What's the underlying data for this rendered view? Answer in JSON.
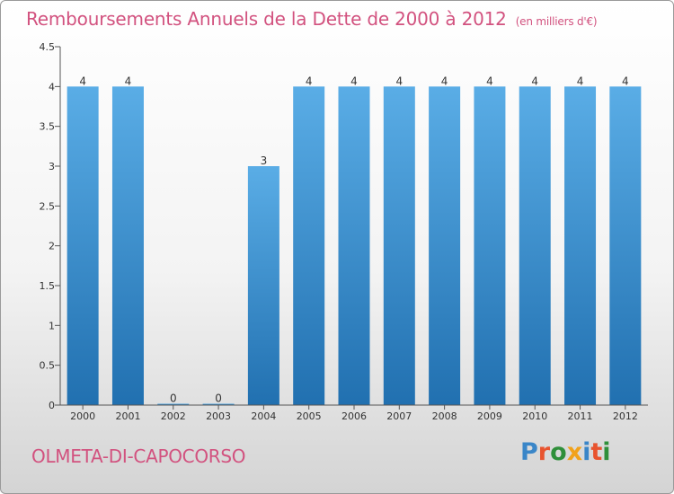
{
  "header": {
    "title": "Remboursements Annuels de la Dette de 2000 à 2012",
    "unit": "(en milliers d'€)"
  },
  "footer": {
    "commune": "OLMETA-DI-CAPOCORSO",
    "logo": "Proxiti"
  },
  "colors": {
    "title": "#d2527f",
    "bar_top": "#5aade6",
    "bar_bottom": "#2170b0"
  },
  "chart_data": {
    "type": "bar",
    "title": "Remboursements Annuels de la Dette de 2000 à 2012",
    "subtitle": "(en milliers d'€)",
    "categories": [
      "2000",
      "2001",
      "2002",
      "2003",
      "2004",
      "2005",
      "2006",
      "2007",
      "2008",
      "2009",
      "2010",
      "2011",
      "2012"
    ],
    "values": [
      4,
      4,
      0,
      0,
      3,
      4,
      4,
      4,
      4,
      4,
      4,
      4,
      4
    ],
    "data_labels": [
      "4",
      "4",
      "0",
      "0",
      "3",
      "4",
      "4",
      "4",
      "4",
      "4",
      "4",
      "4",
      "4"
    ],
    "yticks": [
      0,
      0.5,
      1,
      1.5,
      2,
      2.5,
      3,
      3.5,
      4,
      4.5
    ],
    "ytick_labels": [
      "0",
      "0.5",
      "1",
      "1.5",
      "2",
      "2.5",
      "3",
      "3.5",
      "4",
      "4.5"
    ],
    "ylim": [
      0,
      4.5
    ],
    "xlabel": "",
    "ylabel": "",
    "grid": false,
    "legend": "none"
  }
}
